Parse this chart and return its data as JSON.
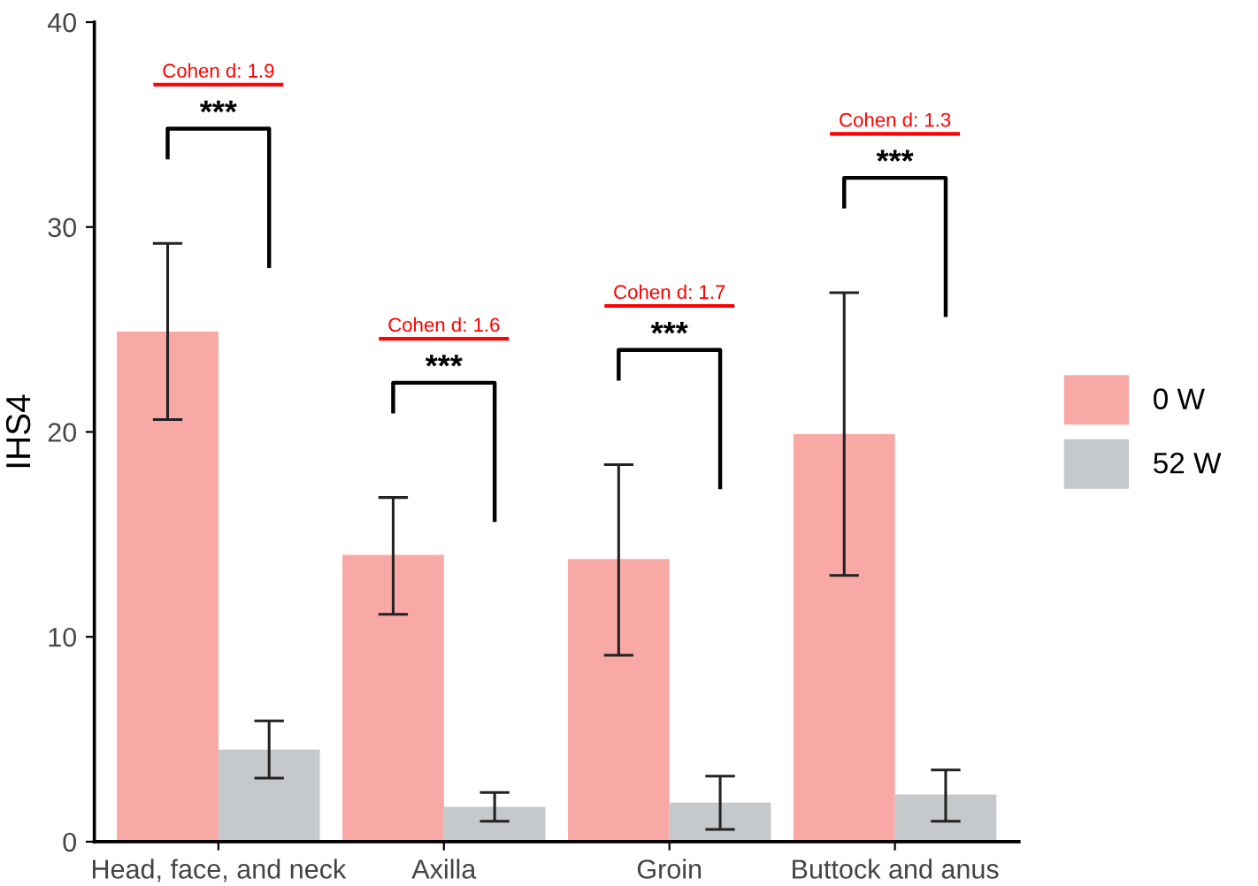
{
  "chart_data": {
    "type": "bar",
    "ylabel": "IHS4",
    "categories": [
      "Head, face, and neck",
      "Axilla",
      "Groin",
      "Buttock and anus"
    ],
    "series": [
      {
        "name": "0 W",
        "color": "#f8a8a5",
        "values": [
          24.9,
          14.0,
          13.8,
          19.9
        ],
        "errors": [
          [
            20.6,
            29.2
          ],
          [
            11.1,
            16.8
          ],
          [
            9.1,
            18.4
          ],
          [
            13.0,
            26.8
          ]
        ]
      },
      {
        "name": "52 W",
        "color": "#c5c9cb",
        "values": [
          4.5,
          1.7,
          1.9,
          2.3
        ],
        "errors": [
          [
            3.1,
            5.9
          ],
          [
            1.0,
            2.4
          ],
          [
            0.6,
            3.2
          ],
          [
            1.0,
            3.5
          ]
        ]
      }
    ],
    "ylim": [
      0,
      40
    ],
    "yticks": [
      0,
      10,
      20,
      30,
      40
    ],
    "grid": false,
    "legend": "right",
    "annotations": [
      "Cohen d: 1.9",
      "***",
      "Cohen d: 1.6",
      "***",
      "Cohen d: 1.7",
      "***",
      "Cohen d: 1.3",
      "***"
    ]
  }
}
